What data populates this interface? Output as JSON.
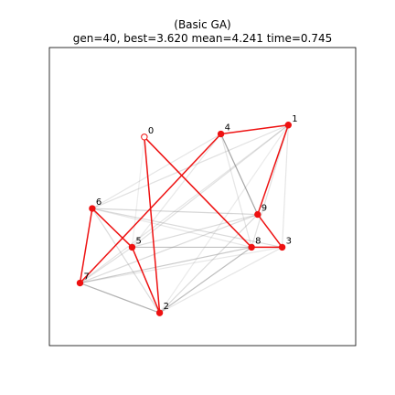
{
  "chart_data": {
    "type": "scatter",
    "title": "(Basic GA)",
    "subtitle": "gen=40, best=3.620 mean=4.241 time=0.745",
    "grid": false,
    "legend": "none",
    "xlim": [
      0,
      1
    ],
    "ylim": [
      0,
      1
    ],
    "colors": {
      "tour": "#ee1111",
      "node_fill": "#ee1111",
      "start_fill": "#ffffff",
      "population_edge": "#888888",
      "frame": "#000000"
    },
    "points": [
      {
        "label": "0",
        "x": 0.31,
        "y": 0.7,
        "start": true
      },
      {
        "label": "1",
        "x": 0.78,
        "y": 0.74,
        "start": false
      },
      {
        "label": "2",
        "x": 0.36,
        "y": 0.11,
        "start": false
      },
      {
        "label": "3",
        "x": 0.76,
        "y": 0.33,
        "start": false
      },
      {
        "label": "4",
        "x": 0.56,
        "y": 0.71,
        "start": false
      },
      {
        "label": "5",
        "x": 0.27,
        "y": 0.33,
        "start": false
      },
      {
        "label": "6",
        "x": 0.14,
        "y": 0.46,
        "start": false
      },
      {
        "label": "7",
        "x": 0.1,
        "y": 0.21,
        "start": false
      },
      {
        "label": "8",
        "x": 0.66,
        "y": 0.33,
        "start": false
      },
      {
        "label": "9",
        "x": 0.68,
        "y": 0.44,
        "start": false
      }
    ],
    "best_tour": [
      "0",
      "2",
      "5",
      "6",
      "7",
      "4",
      "1",
      "9",
      "3",
      "8",
      "0"
    ],
    "population_edges": [
      {
        "from": "4",
        "to": "9",
        "opacity": 0.75
      },
      {
        "from": "7",
        "to": "2",
        "opacity": 0.65
      },
      {
        "from": "2",
        "to": "8",
        "opacity": 0.55
      },
      {
        "from": "7",
        "to": "8",
        "opacity": 0.45
      },
      {
        "from": "6",
        "to": "9",
        "opacity": 0.35
      },
      {
        "from": "5",
        "to": "8",
        "opacity": 0.35
      },
      {
        "from": "7",
        "to": "9",
        "opacity": 0.3
      },
      {
        "from": "6",
        "to": "3",
        "opacity": 0.3
      },
      {
        "from": "5",
        "to": "9",
        "opacity": 0.3
      },
      {
        "from": "2",
        "to": "9",
        "opacity": 0.3
      },
      {
        "from": "6",
        "to": "2",
        "opacity": 0.3
      },
      {
        "from": "5",
        "to": "3",
        "opacity": 0.25
      },
      {
        "from": "6",
        "to": "1",
        "opacity": 0.25
      },
      {
        "from": "5",
        "to": "1",
        "opacity": 0.25
      },
      {
        "from": "7",
        "to": "1",
        "opacity": 0.22
      },
      {
        "from": "6",
        "to": "4",
        "opacity": 0.22
      },
      {
        "from": "7",
        "to": "3",
        "opacity": 0.2
      },
      {
        "from": "6",
        "to": "8",
        "opacity": 0.2
      },
      {
        "from": "8",
        "to": "1",
        "opacity": 0.25
      },
      {
        "from": "3",
        "to": "1",
        "opacity": 0.22
      },
      {
        "from": "2",
        "to": "3",
        "opacity": 0.22
      },
      {
        "from": "5",
        "to": "4",
        "opacity": 0.2
      },
      {
        "from": "6",
        "to": "5",
        "opacity": 0.22
      },
      {
        "from": "4",
        "to": "8",
        "opacity": 0.22
      },
      {
        "from": "7",
        "to": "5",
        "opacity": 0.25
      },
      {
        "from": "2",
        "to": "1",
        "opacity": 0.18
      },
      {
        "from": "0",
        "to": "5",
        "opacity": 0.15
      },
      {
        "from": "9",
        "to": "1",
        "opacity": 0.18
      }
    ]
  }
}
